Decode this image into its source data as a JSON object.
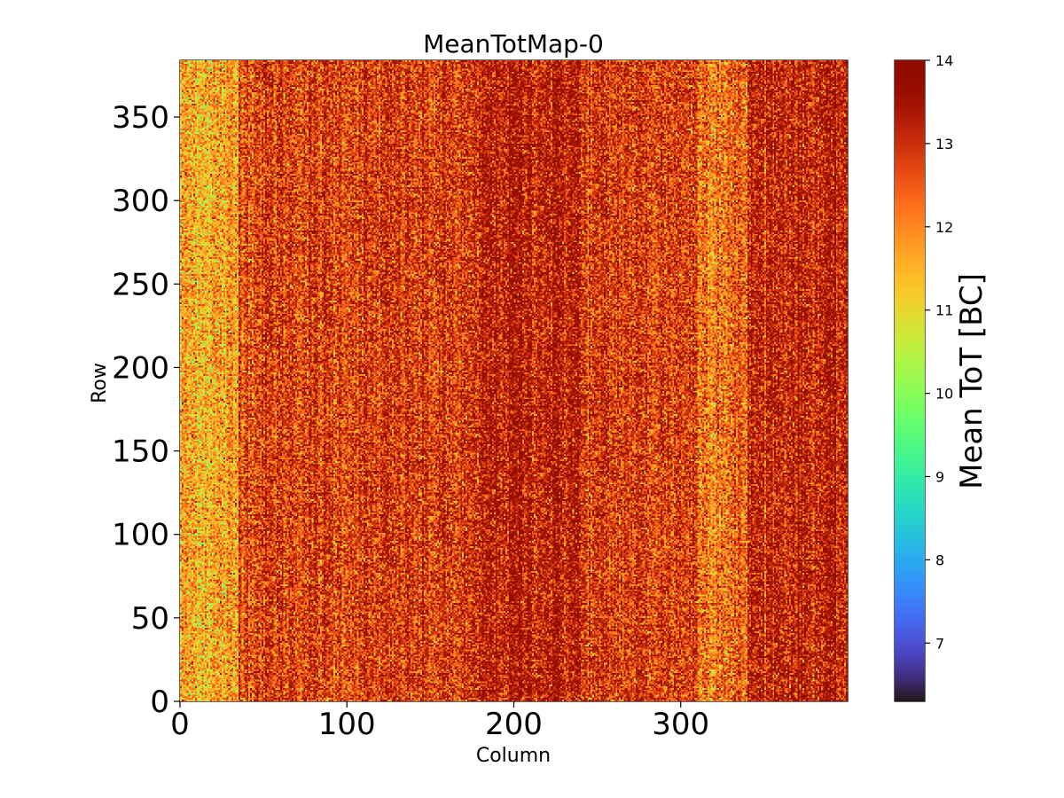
{
  "chart_data": {
    "type": "heatmap",
    "title": "MeanTotMap-0",
    "xlabel": "Column",
    "ylabel": "Row",
    "colorbar_label": "Mean ToT [BC]",
    "xlim": [
      0,
      400
    ],
    "ylim": [
      0,
      384
    ],
    "x_ticks": [
      0,
      100,
      200,
      300
    ],
    "y_ticks": [
      0,
      50,
      100,
      150,
      200,
      250,
      300,
      350
    ],
    "clim": [
      6.3,
      14
    ],
    "colorbar_ticks": [
      7,
      8,
      9,
      10,
      11,
      12,
      13,
      14
    ],
    "colormap": "turbo",
    "grid": false,
    "n_columns": 400,
    "n_rows": 384,
    "typical_value": 12.9,
    "column_profile": [
      {
        "column_range": [
          0,
          35
        ],
        "mean": 11.6
      },
      {
        "column_range": [
          35,
          180
        ],
        "mean": 12.8
      },
      {
        "column_range": [
          180,
          240
        ],
        "mean": 13.3
      },
      {
        "column_range": [
          240,
          310
        ],
        "mean": 12.8
      },
      {
        "column_range": [
          310,
          340
        ],
        "mean": 12.3
      },
      {
        "column_range": [
          340,
          400
        ],
        "mean": 13.2
      }
    ]
  }
}
